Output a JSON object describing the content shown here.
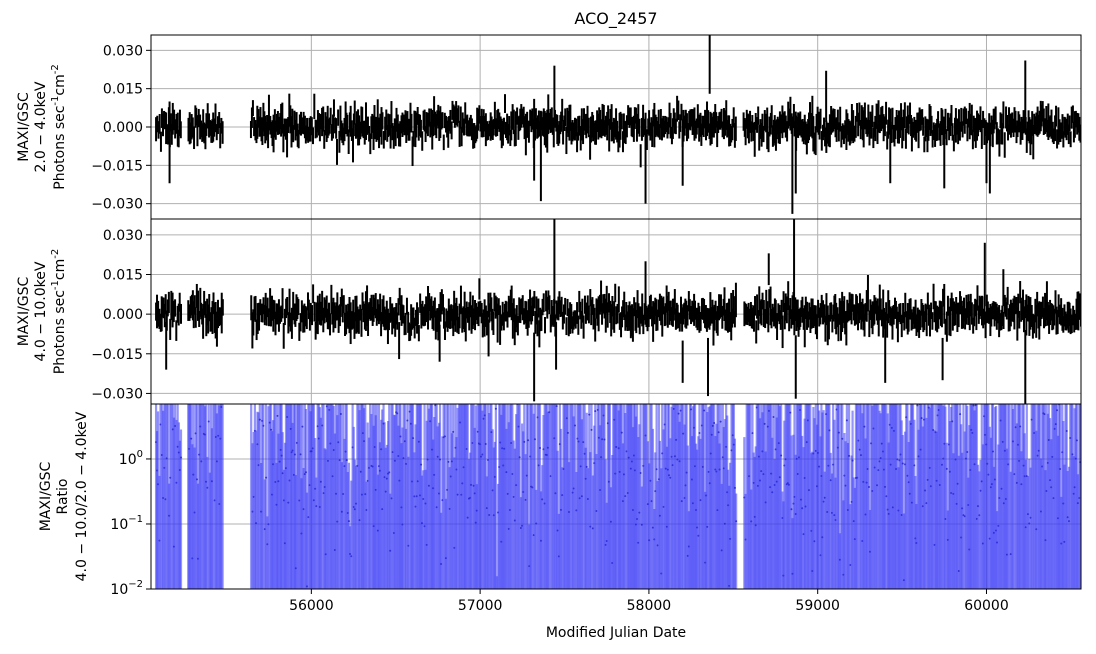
{
  "chart_data": {
    "type": "scatter",
    "title": "ACO_2457",
    "xlabel": "Modified Julian Date",
    "xlim": [
      55050,
      60560
    ],
    "xticks": [
      56000,
      57000,
      58000,
      59000,
      60000
    ],
    "xtick_labels": [
      "56000",
      "57000",
      "58000",
      "59000",
      "60000"
    ],
    "grid": true,
    "panels": [
      {
        "id": "soft",
        "ylabel": [
          "MAXI/GSC",
          "2.0 − 4.0keV",
          "Photons sec",
          "-1",
          "cm",
          "-2"
        ],
        "ylim": [
          -0.036,
          0.036
        ],
        "yscale": "linear",
        "yticks": [
          -0.03,
          -0.015,
          0.0,
          0.015,
          0.03
        ],
        "ytick_labels": [
          "−0.030",
          "−0.015",
          "0.000",
          "0.015",
          "0.030"
        ],
        "color": "#000000",
        "notable_points": [
          {
            "x": 55160,
            "y": -0.006,
            "err": 0.016
          },
          {
            "x": 57320,
            "y": -0.005,
            "err": 0.016
          },
          {
            "x": 57360,
            "y": -0.012,
            "err": 0.017
          },
          {
            "x": 57440,
            "y": 0.012,
            "err": 0.012
          },
          {
            "x": 57980,
            "y": -0.013,
            "err": 0.017
          },
          {
            "x": 58200,
            "y": -0.01,
            "err": 0.013
          },
          {
            "x": 58360,
            "y": 0.025,
            "err": 0.012
          },
          {
            "x": 58850,
            "y": -0.015,
            "err": 0.019
          },
          {
            "x": 58870,
            "y": -0.01,
            "err": 0.016
          },
          {
            "x": 59050,
            "y": 0.012,
            "err": 0.01
          },
          {
            "x": 59430,
            "y": -0.01,
            "err": 0.012
          },
          {
            "x": 59750,
            "y": -0.01,
            "err": 0.014
          },
          {
            "x": 60000,
            "y": -0.01,
            "err": 0.012
          },
          {
            "x": 60020,
            "y": -0.014,
            "err": 0.012
          },
          {
            "x": 60230,
            "y": 0.013,
            "err": 0.013
          }
        ]
      },
      {
        "id": "hard",
        "ylabel": [
          "MAXI/GSC",
          "4.0 − 10.0keV",
          "Photons sec",
          "-1",
          "cm",
          "-2"
        ],
        "ylim": [
          -0.034,
          0.036
        ],
        "yscale": "linear",
        "yticks": [
          -0.03,
          -0.015,
          0.0,
          0.015,
          0.03
        ],
        "ytick_labels": [
          "−0.030",
          "−0.015",
          "0.000",
          "0.015",
          "0.030"
        ],
        "color": "#000000",
        "notable_points": [
          {
            "x": 55140,
            "y": -0.012,
            "err": 0.009
          },
          {
            "x": 56520,
            "y": -0.01,
            "err": 0.007
          },
          {
            "x": 56760,
            "y": -0.011,
            "err": 0.007
          },
          {
            "x": 57050,
            "y": -0.009,
            "err": 0.007
          },
          {
            "x": 57320,
            "y": -0.02,
            "err": 0.013
          },
          {
            "x": 57440,
            "y": 0.02,
            "err": 0.016
          },
          {
            "x": 57450,
            "y": -0.012,
            "err": 0.009
          },
          {
            "x": 57980,
            "y": 0.008,
            "err": 0.012
          },
          {
            "x": 58200,
            "y": -0.018,
            "err": 0.008
          },
          {
            "x": 58350,
            "y": -0.02,
            "err": 0.011
          },
          {
            "x": 58710,
            "y": 0.017,
            "err": 0.006
          },
          {
            "x": 58860,
            "y": 0.02,
            "err": 0.018
          },
          {
            "x": 58870,
            "y": -0.02,
            "err": 0.012
          },
          {
            "x": 59400,
            "y": -0.015,
            "err": 0.011
          },
          {
            "x": 59740,
            "y": -0.017,
            "err": 0.008
          },
          {
            "x": 59990,
            "y": 0.015,
            "err": 0.012
          },
          {
            "x": 60100,
            "y": 0.01,
            "err": 0.007
          },
          {
            "x": 60230,
            "y": -0.02,
            "err": 0.014
          }
        ]
      },
      {
        "id": "ratio",
        "ylabel": [
          "MAXI/GSC",
          "Ratio",
          "4.0 − 10.0/2.0 − 4.0keV"
        ],
        "ylim": [
          0.01,
          7.0
        ],
        "yscale": "log",
        "yticks": [
          0.01,
          0.1,
          1.0
        ],
        "ytick_labels": [
          "10",
          "10",
          "10"
        ],
        "ytick_exponents": [
          "−2",
          "−1",
          "0"
        ],
        "color": "#3a3af5"
      }
    ]
  }
}
